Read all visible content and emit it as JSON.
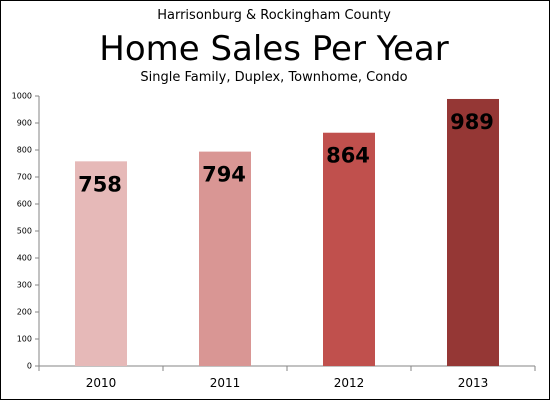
{
  "chart_data": {
    "type": "bar",
    "supertitle": "Harrisonburg & Rockingham County",
    "title": "Home Sales Per Year",
    "subtitle": "Single Family,  Duplex, Townhome, Condo",
    "categories": [
      "2010",
      "2011",
      "2012",
      "2013"
    ],
    "values": [
      758,
      794,
      864,
      989
    ],
    "data_labels": [
      "758",
      "794",
      "864",
      "989"
    ],
    "bar_colors": [
      "#e6b9b8",
      "#d99694",
      "#c0504d",
      "#953735"
    ],
    "xlabel": "",
    "ylabel": "",
    "ylim": [
      0,
      1000
    ],
    "y_ticks": [
      0,
      100,
      200,
      300,
      400,
      500,
      600,
      700,
      800,
      900,
      1000
    ],
    "y_tick_labels": [
      "0",
      "100",
      "200",
      "300",
      "400",
      "500",
      "600",
      "700",
      "800",
      "900",
      "1000"
    ],
    "grid": false,
    "legend": "none"
  }
}
